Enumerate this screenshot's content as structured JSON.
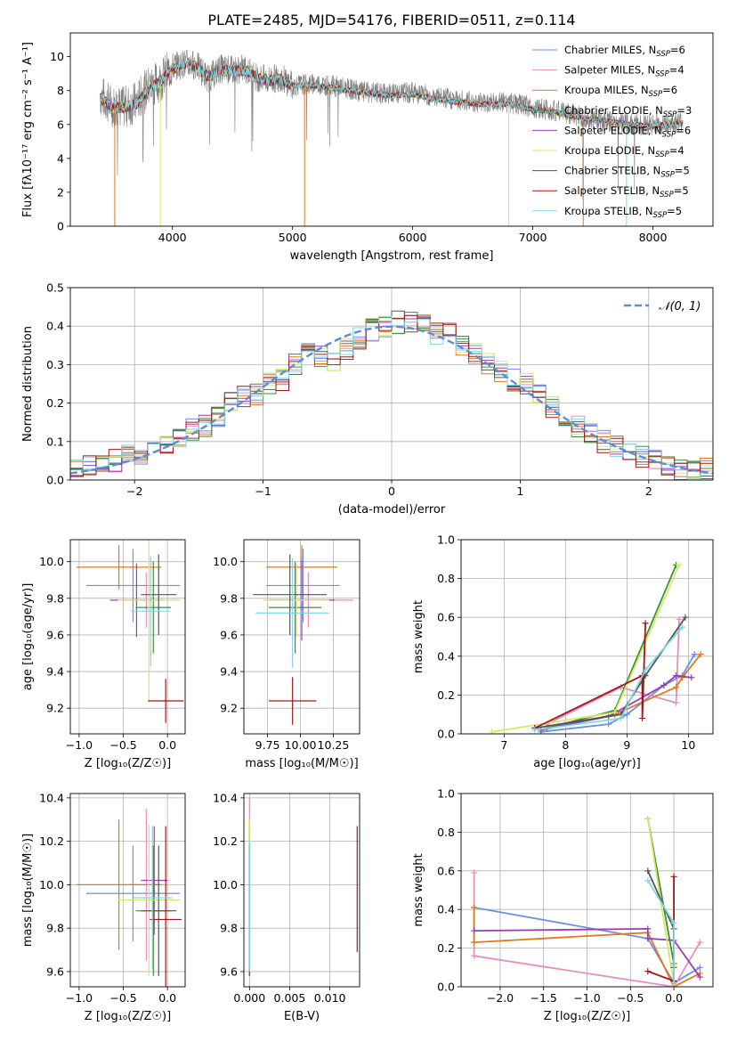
{
  "figure": {
    "title": "PLATE=2485, MJD=54176, FIBERID=0511, z=0.114"
  },
  "series_colors": [
    "#6f8fe0",
    "#e58fc0",
    "#e07820",
    "#3e8e3e",
    "#9a3fb0",
    "#d6e86a",
    "#555555",
    "#a01818",
    "#7fd6e6"
  ],
  "chart_data": [
    {
      "id": "spectrum",
      "type": "line",
      "title": "PLATE=2485, MJD=54176, FIBERID=0511, z=0.114",
      "xlabel": "wavelength [Angstrom, rest frame]",
      "ylabel": "Flux [fλ10⁻¹⁷ erg cm⁻² s⁻¹ A⁻¹]",
      "xlim": [
        3150,
        8500
      ],
      "ylim": [
        0,
        11.4
      ],
      "xticks": [
        4000,
        5000,
        6000,
        7000,
        8000
      ],
      "yticks": [
        0,
        2,
        4,
        6,
        8,
        10
      ],
      "grid": false,
      "legend_position": "top-right",
      "data_color": "#7f7f7f",
      "data_x": [
        3400,
        3500,
        3600,
        3700,
        3800,
        3900,
        4000,
        4100,
        4200,
        4300,
        4400,
        4500,
        4600,
        4700,
        4800,
        4900,
        5000,
        5200,
        5400,
        5600,
        5800,
        6000,
        6200,
        6400,
        6600,
        6800,
        7000,
        7200,
        7400,
        7600,
        7800,
        8000,
        8250
      ],
      "data_y": [
        7.7,
        7.1,
        7.0,
        7.3,
        8.2,
        8.6,
        9.4,
        9.6,
        9.5,
        8.7,
        9.3,
        9.2,
        9.3,
        8.8,
        8.6,
        8.8,
        8.3,
        8.4,
        8.2,
        7.9,
        7.8,
        7.9,
        7.6,
        7.4,
        7.3,
        7.3,
        7.0,
        6.8,
        6.5,
        6.2,
        6.0,
        6.0,
        6.1
      ],
      "model_x": [
        3400,
        3500,
        3600,
        3700,
        3800,
        3900,
        4000,
        4100,
        4200,
        4300,
        4400,
        4500,
        4600,
        4700,
        4800,
        4900,
        5000,
        5200,
        5400,
        5600,
        5800,
        6000,
        6200,
        6400,
        6600,
        6800,
        7000,
        7200,
        7400,
        7600,
        7800,
        8000,
        8250
      ],
      "model_y": [
        7.6,
        7.0,
        7.0,
        7.2,
        8.1,
        8.5,
        9.3,
        9.6,
        9.4,
        8.8,
        9.2,
        9.2,
        9.2,
        8.8,
        8.6,
        8.7,
        8.3,
        8.3,
        8.1,
        7.9,
        7.7,
        7.8,
        7.5,
        7.3,
        7.2,
        7.2,
        6.9,
        6.7,
        6.4,
        6.2,
        6.0,
        5.9,
        6.1
      ],
      "series": [
        {
          "name": "Chabrier MILES, N",
          "sub": "SSP",
          "suffix": "=6"
        },
        {
          "name": "Salpeter MILES, N",
          "sub": "SSP",
          "suffix": "=4"
        },
        {
          "name": "Kroupa MILES, N",
          "sub": "SSP",
          "suffix": "=6"
        },
        {
          "name": "Chabrier ELODIE, N",
          "sub": "SSP",
          "suffix": "=3"
        },
        {
          "name": "Salpeter ELODIE, N",
          "sub": "SSP",
          "suffix": "=6"
        },
        {
          "name": "Kroupa ELODIE, N",
          "sub": "SSP",
          "suffix": "=4"
        },
        {
          "name": "Chabrier STELIB, N",
          "sub": "SSP",
          "suffix": "=5"
        },
        {
          "name": "Salpeter STELIB, N",
          "sub": "SSP",
          "suffix": "=5"
        },
        {
          "name": "Kroupa STELIB, N",
          "sub": "SSP",
          "suffix": "=5"
        }
      ],
      "dropouts": [
        {
          "x": 3520,
          "series": 2
        },
        {
          "x": 3900,
          "series": 5
        },
        {
          "x": 5100,
          "series": 2
        },
        {
          "x": 6800,
          "series": 5
        },
        {
          "x": 7420,
          "series": 2
        },
        {
          "x": 7780,
          "series": 8
        }
      ]
    },
    {
      "id": "residuals",
      "type": "line",
      "xlabel": "(data-model)/error",
      "ylabel": "Normed distribution",
      "xlim": [
        -2.5,
        2.5
      ],
      "ylim": [
        0,
        0.5
      ],
      "xticks": [
        -2,
        -1,
        0,
        1,
        2
      ],
      "yticks": [
        0.0,
        0.1,
        0.2,
        0.3,
        0.4,
        0.5
      ],
      "grid": true,
      "legend": "𝒩(0, 1)",
      "legend_position": "top-right",
      "bin_edges": [
        -2.5,
        -2.4,
        -2.3,
        -2.2,
        -2.1,
        -2.0,
        -1.9,
        -1.8,
        -1.7,
        -1.6,
        -1.5,
        -1.4,
        -1.3,
        -1.2,
        -1.1,
        -1.0,
        -0.9,
        -0.8,
        -0.7,
        -0.6,
        -0.5,
        -0.4,
        -0.3,
        -0.2,
        -0.1,
        0.0,
        0.1,
        0.2,
        0.3,
        0.4,
        0.5,
        0.6,
        0.7,
        0.8,
        0.9,
        1.0,
        1.1,
        1.2,
        1.3,
        1.4,
        1.5,
        1.6,
        1.7,
        1.8,
        1.9,
        2.0,
        2.1,
        2.2,
        2.3,
        2.4,
        2.5
      ],
      "hist_base": [
        0.03,
        0.04,
        0.04,
        0.05,
        0.07,
        0.07,
        0.08,
        0.09,
        0.11,
        0.13,
        0.14,
        0.16,
        0.2,
        0.22,
        0.22,
        0.25,
        0.26,
        0.3,
        0.34,
        0.32,
        0.31,
        0.34,
        0.37,
        0.39,
        0.4,
        0.41,
        0.41,
        0.4,
        0.38,
        0.38,
        0.35,
        0.33,
        0.3,
        0.28,
        0.26,
        0.25,
        0.22,
        0.19,
        0.16,
        0.14,
        0.12,
        0.1,
        0.09,
        0.08,
        0.06,
        0.05,
        0.04,
        0.03,
        0.03,
        0.03
      ],
      "curve_color": "#5b8cd6"
    },
    {
      "id": "age-vs-Z",
      "type": "scatter",
      "xlabel": "Z [log₁₀(Z/Z☉)]",
      "ylabel": "age  [log₁₀(age/yr)]",
      "xlim": [
        -1.1,
        0.2
      ],
      "ylim": [
        9.06,
        10.12
      ],
      "xticks": [
        -1.0,
        -0.5,
        0.0
      ],
      "yticks": [
        9.2,
        9.4,
        9.6,
        9.8,
        10.0
      ],
      "grid": true,
      "points": [
        {
          "x": -0.39,
          "y": 9.87,
          "xerr": 0.53,
          "yerr": 0.2,
          "series": 0
        },
        {
          "x": -0.24,
          "y": 9.79,
          "xerr": 0.2,
          "yerr": 0.15,
          "series": 1
        },
        {
          "x": -0.55,
          "y": 9.97,
          "xerr": 0.48,
          "yerr": 0.12,
          "series": 2
        },
        {
          "x": -0.16,
          "y": 9.75,
          "xerr": 0.2,
          "yerr": 0.25,
          "series": 3
        },
        {
          "x": -0.35,
          "y": 9.79,
          "xerr": 0.3,
          "yerr": 0.2,
          "series": 4
        },
        {
          "x": -0.21,
          "y": 9.79,
          "xerr": 0.35,
          "yerr": 0.56,
          "series": 5
        },
        {
          "x": -0.1,
          "y": 9.82,
          "xerr": 0.2,
          "yerr": 0.22,
          "series": 6
        },
        {
          "x": -0.02,
          "y": 9.24,
          "xerr": 0.2,
          "yerr": 0.12,
          "series": 7
        },
        {
          "x": -0.19,
          "y": 9.73,
          "xerr": 0.22,
          "yerr": 0.3,
          "series": 8
        }
      ]
    },
    {
      "id": "age-vs-mass",
      "type": "scatter",
      "xlabel": "mass [log₁₀(M/M☉)]",
      "ylabel": "",
      "xlim": [
        9.57,
        10.45
      ],
      "ylim": [
        9.06,
        10.12
      ],
      "xticks": [
        9.75,
        10.0,
        10.25
      ],
      "yticks": [
        9.2,
        9.4,
        9.6,
        9.8,
        10.0
      ],
      "grid": true,
      "points": [
        {
          "x": 10.02,
          "y": 9.87,
          "xerr": 0.28,
          "yerr": 0.2,
          "series": 0
        },
        {
          "x": 10.06,
          "y": 9.79,
          "xerr": 0.34,
          "yerr": 0.15,
          "series": 1
        },
        {
          "x": 10.01,
          "y": 9.97,
          "xerr": 0.27,
          "yerr": 0.12,
          "series": 2
        },
        {
          "x": 9.96,
          "y": 9.75,
          "xerr": 0.2,
          "yerr": 0.25,
          "series": 3
        },
        {
          "x": 10.01,
          "y": 9.79,
          "xerr": 0.25,
          "yerr": 0.22,
          "series": 4
        },
        {
          "x": 9.97,
          "y": 9.79,
          "xerr": 0.25,
          "yerr": 0.2,
          "series": 5
        },
        {
          "x": 9.92,
          "y": 9.82,
          "xerr": 0.28,
          "yerr": 0.22,
          "series": 6
        },
        {
          "x": 9.94,
          "y": 9.24,
          "xerr": 0.18,
          "yerr": 0.13,
          "series": 7
        },
        {
          "x": 9.94,
          "y": 9.72,
          "xerr": 0.28,
          "yerr": 0.3,
          "series": 8
        }
      ]
    },
    {
      "id": "weight-vs-age",
      "type": "line",
      "xlabel": "age  [log₁₀(age/yr)]",
      "ylabel": "mass weight",
      "xlim": [
        6.3,
        10.4
      ],
      "ylim": [
        0,
        1.0
      ],
      "xticks": [
        7,
        8,
        9,
        10
      ],
      "yticks": [
        0.0,
        0.2,
        0.4,
        0.6,
        0.8,
        1.0
      ],
      "grid": true,
      "series": [
        {
          "series": 0,
          "x": [
            7.6,
            8.7,
            9.0,
            9.6,
            9.9,
            10.1
          ],
          "y": [
            0.01,
            0.05,
            0.1,
            0.25,
            0.3,
            0.41
          ]
        },
        {
          "series": 1,
          "x": [
            7.7,
            8.9,
            9.8,
            9.85
          ],
          "y": [
            0.05,
            0.24,
            0.16,
            0.59
          ]
        },
        {
          "series": 2,
          "x": [
            7.6,
            8.8,
            9.8,
            9.9,
            10.2
          ],
          "y": [
            0.02,
            0.1,
            0.24,
            0.29,
            0.41
          ]
        },
        {
          "series": 3,
          "x": [
            7.7,
            8.8,
            9.8
          ],
          "y": [
            0.03,
            0.12,
            0.87
          ]
        },
        {
          "series": 4,
          "x": [
            7.6,
            8.7,
            9.6,
            9.8,
            10.05
          ],
          "y": [
            0.02,
            0.09,
            0.25,
            0.3,
            0.29
          ]
        },
        {
          "series": 5,
          "x": [
            6.8,
            8.8,
            9.85
          ],
          "y": [
            0.01,
            0.11,
            0.87
          ]
        },
        {
          "series": 6,
          "x": [
            7.5,
            8.9,
            9.3,
            9.95
          ],
          "y": [
            0.03,
            0.1,
            0.3,
            0.6
          ]
        },
        {
          "series": 7,
          "x": [
            7.5,
            9.25,
            9.25,
            9.3
          ],
          "y": [
            0.03,
            0.3,
            0.08,
            0.57
          ]
        },
        {
          "series": 8,
          "x": [
            7.5,
            8.9,
            9.3,
            9.9
          ],
          "y": [
            0.02,
            0.08,
            0.33,
            0.55
          ]
        }
      ]
    },
    {
      "id": "mass-vs-Z",
      "type": "scatter",
      "xlabel": "Z [log₁₀(Z/Z☉)]",
      "ylabel": "mass [log₁₀(M/M☉)]",
      "xlim": [
        -1.1,
        0.2
      ],
      "ylim": [
        9.53,
        10.42
      ],
      "xticks": [
        -1.0,
        -0.5,
        0.0
      ],
      "yticks": [
        9.6,
        9.8,
        10.0,
        10.2,
        10.4
      ],
      "grid": true,
      "points": [
        {
          "x": -0.39,
          "y": 9.96,
          "xerr": 0.53,
          "yerr": 0.22,
          "series": 0
        },
        {
          "x": -0.24,
          "y": 10.0,
          "xerr": 0.2,
          "yerr": 0.35,
          "series": 1
        },
        {
          "x": -0.55,
          "y": 10.0,
          "xerr": 0.48,
          "yerr": 0.3,
          "series": 2
        },
        {
          "x": -0.16,
          "y": 9.88,
          "xerr": 0.2,
          "yerr": 0.3,
          "series": 3
        },
        {
          "x": -0.15,
          "y": 10.02,
          "xerr": 0.15,
          "yerr": 0.25,
          "series": 4
        },
        {
          "x": -0.21,
          "y": 9.93,
          "xerr": 0.35,
          "yerr": 0.35,
          "series": 5
        },
        {
          "x": -0.1,
          "y": 9.88,
          "xerr": 0.2,
          "yerr": 0.3,
          "series": 6
        },
        {
          "x": -0.02,
          "y": 9.84,
          "xerr": 0.18,
          "yerr": 0.43,
          "series": 7
        },
        {
          "x": -0.17,
          "y": 9.94,
          "xerr": 0.22,
          "yerr": 0.33,
          "series": 8
        }
      ]
    },
    {
      "id": "mass-vs-EBV",
      "type": "scatter",
      "xlabel": "E(B-V)",
      "ylabel": "",
      "xlim": [
        -0.0007,
        0.0137
      ],
      "ylim": [
        9.53,
        10.42
      ],
      "xticks": [
        0.0,
        0.005,
        0.01
      ],
      "yticks": [
        9.6,
        9.8,
        10.0,
        10.2,
        10.4
      ],
      "grid": true,
      "points": [
        {
          "x": 0.0,
          "y": 9.96,
          "xerr": 0,
          "yerr": 0.22,
          "series": 0
        },
        {
          "x": 0.0,
          "y": 10.05,
          "xerr": 0,
          "yerr": 0.35,
          "series": 1
        },
        {
          "x": 0.0,
          "y": 10.0,
          "xerr": 0,
          "yerr": 0.3,
          "series": 2
        },
        {
          "x": 0.0,
          "y": 9.88,
          "xerr": 0,
          "yerr": 0.3,
          "series": 3
        },
        {
          "x": 0.0,
          "y": 10.0,
          "xerr": 0,
          "yerr": 0.25,
          "series": 4
        },
        {
          "x": 0.0,
          "y": 9.95,
          "xerr": 0,
          "yerr": 0.35,
          "series": 5
        },
        {
          "x": 0.0,
          "y": 9.88,
          "xerr": 0,
          "yerr": 0.3,
          "series": 6
        },
        {
          "x": 0.0134,
          "y": 9.98,
          "xerr": 0,
          "yerr": 0.29,
          "series": 7
        },
        {
          "x": 0.0,
          "y": 9.9,
          "xerr": 0,
          "yerr": 0.3,
          "series": 8
        }
      ]
    },
    {
      "id": "weight-vs-Z",
      "type": "line",
      "xlabel": "Z [log₁₀(Z/Z☉)]",
      "ylabel": "mass weight",
      "xlim": [
        -2.45,
        0.45
      ],
      "ylim": [
        0,
        1.0
      ],
      "xticks": [
        -2.0,
        -1.5,
        -1.0,
        -0.5,
        0.0
      ],
      "yticks": [
        0.0,
        0.2,
        0.4,
        0.6,
        0.8,
        1.0
      ],
      "grid": true,
      "series": [
        {
          "series": 0,
          "x": [
            -2.3,
            -0.3,
            0.0,
            0.3
          ],
          "y": [
            0.41,
            0.25,
            0.02,
            0.1
          ]
        },
        {
          "series": 1,
          "x": [
            -2.3,
            -2.3,
            0.0,
            0.3
          ],
          "y": [
            0.59,
            0.16,
            0.0,
            0.23
          ]
        },
        {
          "series": 2,
          "x": [
            -2.3,
            -2.3,
            -0.3,
            0.0,
            0.3
          ],
          "y": [
            0.41,
            0.23,
            0.28,
            0.0,
            0.07
          ]
        },
        {
          "series": 3,
          "x": [
            -0.3,
            0.0,
            0.0
          ],
          "y": [
            0.87,
            0.12,
            0.03
          ]
        },
        {
          "series": 4,
          "x": [
            -2.3,
            -0.3,
            -0.3,
            0.0,
            0.3
          ],
          "y": [
            0.29,
            0.3,
            0.25,
            0.24,
            0.05
          ]
        },
        {
          "series": 5,
          "x": [
            -0.3,
            0.0,
            0.0
          ],
          "y": [
            0.87,
            0.01,
            0.11
          ]
        },
        {
          "series": 6,
          "x": [
            -0.3,
            0.0,
            0.0
          ],
          "y": [
            0.6,
            0.3,
            0.1
          ]
        },
        {
          "series": 7,
          "x": [
            -0.3,
            0.0,
            0.0
          ],
          "y": [
            0.08,
            0.03,
            0.57
          ]
        },
        {
          "series": 8,
          "x": [
            -0.3,
            0.0,
            0.0
          ],
          "y": [
            0.55,
            0.33,
            0.02
          ]
        }
      ]
    }
  ]
}
